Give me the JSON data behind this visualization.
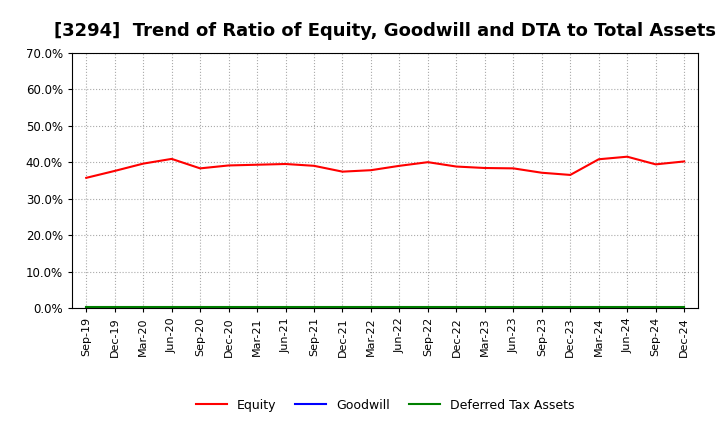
{
  "title": "[3294]  Trend of Ratio of Equity, Goodwill and DTA to Total Assets",
  "title_fontsize": 13,
  "background_color": "#ffffff",
  "plot_bg_color": "#ffffff",
  "grid_color": "#aaaaaa",
  "ylim": [
    0.0,
    0.7
  ],
  "yticks": [
    0.0,
    0.1,
    0.2,
    0.3,
    0.4,
    0.5,
    0.6,
    0.7
  ],
  "x_labels": [
    "Sep-19",
    "Dec-19",
    "Mar-20",
    "Jun-20",
    "Sep-20",
    "Dec-20",
    "Mar-21",
    "Jun-21",
    "Sep-21",
    "Dec-21",
    "Mar-22",
    "Jun-22",
    "Sep-22",
    "Dec-22",
    "Mar-23",
    "Jun-23",
    "Sep-23",
    "Dec-23",
    "Mar-24",
    "Jun-24",
    "Sep-24",
    "Dec-24"
  ],
  "equity": [
    0.357,
    0.376,
    0.396,
    0.409,
    0.383,
    0.391,
    0.393,
    0.395,
    0.39,
    0.374,
    0.378,
    0.39,
    0.4,
    0.388,
    0.384,
    0.383,
    0.371,
    0.365,
    0.408,
    0.415,
    0.394,
    0.402
  ],
  "goodwill": [
    0.001,
    0.001,
    0.001,
    0.001,
    0.001,
    0.001,
    0.001,
    0.001,
    0.001,
    0.001,
    0.001,
    0.001,
    0.001,
    0.001,
    0.001,
    0.001,
    0.001,
    0.001,
    0.001,
    0.001,
    0.001,
    0.001
  ],
  "dta": [
    0.002,
    0.002,
    0.002,
    0.002,
    0.002,
    0.002,
    0.002,
    0.002,
    0.002,
    0.002,
    0.002,
    0.002,
    0.002,
    0.002,
    0.002,
    0.002,
    0.002,
    0.002,
    0.002,
    0.002,
    0.002,
    0.002
  ],
  "equity_color": "#ff0000",
  "goodwill_color": "#0000ff",
  "dta_color": "#008000",
  "legend_labels": [
    "Equity",
    "Goodwill",
    "Deferred Tax Assets"
  ]
}
